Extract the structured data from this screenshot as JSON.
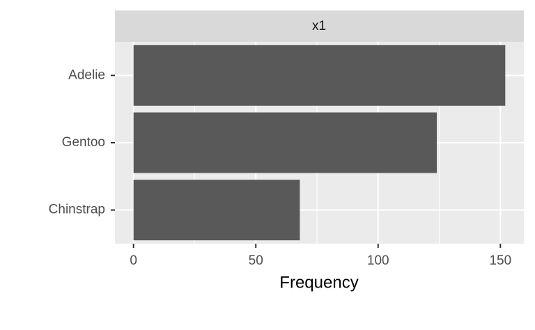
{
  "chart_data": {
    "type": "bar",
    "orientation": "horizontal",
    "facet_label": "x1",
    "categories": [
      "Adelie",
      "Gentoo",
      "Chinstrap"
    ],
    "values": [
      152,
      124,
      68
    ],
    "color": "#595959",
    "x_label": "Frequency",
    "xlim": [
      -7.6,
      159.6
    ],
    "xticks": [
      0,
      50,
      100,
      150
    ],
    "grid": true,
    "minor_grid": true
  }
}
